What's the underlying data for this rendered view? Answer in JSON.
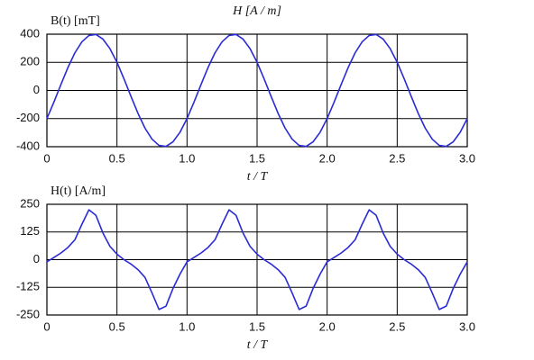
{
  "chart_data": [
    {
      "type": "line",
      "title": "H [A / m]",
      "y_label": "B(t) [mT]",
      "x_label": "t / T",
      "x": [
        0,
        0.05,
        0.1,
        0.15,
        0.2,
        0.25,
        0.3,
        0.35,
        0.4,
        0.45,
        0.5,
        0.55,
        0.6,
        0.65,
        0.7,
        0.75,
        0.8,
        0.85,
        0.9,
        0.95,
        1,
        1.05,
        1.1,
        1.15,
        1.2,
        1.25,
        1.3,
        1.35,
        1.4,
        1.45,
        1.5,
        1.55,
        1.6,
        1.65,
        1.7,
        1.75,
        1.8,
        1.85,
        1.9,
        1.95,
        2,
        2.05,
        2.1,
        2.15,
        2.2,
        2.25,
        2.3,
        2.35,
        2.4,
        2.45,
        2.5,
        2.55,
        2.6,
        2.65,
        2.7,
        2.75,
        2.8,
        2.85,
        2.9,
        2.95,
        3
      ],
      "series": [
        {
          "color": "#2b2bd6",
          "values": [
            -200,
            -83,
            42,
            163,
            268,
            346,
            391,
            398,
            365,
            297,
            200,
            83,
            -42,
            -163,
            -268,
            -346,
            -391,
            -398,
            -365,
            -297,
            -200,
            -83,
            42,
            163,
            268,
            346,
            391,
            398,
            365,
            297,
            200,
            83,
            -42,
            -163,
            -268,
            -346,
            -391,
            -398,
            -365,
            -297,
            -200,
            -83,
            42,
            163,
            268,
            346,
            391,
            398,
            365,
            297,
            200,
            83,
            -42,
            -163,
            -268,
            -346,
            -391,
            -398,
            -365,
            -297,
            -200
          ]
        }
      ],
      "xlim": [
        0,
        3
      ],
      "xticks": [
        0,
        0.5,
        {
          "value": 1,
          "label": "1.0"
        },
        1.5,
        {
          "value": 2,
          "label": "2.0"
        },
        2.5,
        {
          "value": 3,
          "label": "3.0"
        }
      ],
      "ylim": [
        -400,
        400
      ],
      "yticks": [
        -400,
        -200,
        0,
        200,
        400
      ],
      "grid": true
    },
    {
      "type": "line",
      "y_label": "H(t) [A/m]",
      "x_label": "t / T",
      "x": [
        0,
        0.05,
        0.1,
        0.15,
        0.2,
        0.25,
        0.3,
        0.35,
        0.4,
        0.45,
        0.5,
        0.55,
        0.6,
        0.65,
        0.7,
        0.75,
        0.8,
        0.85,
        0.9,
        0.95,
        1,
        1.05,
        1.1,
        1.15,
        1.2,
        1.25,
        1.3,
        1.35,
        1.4,
        1.45,
        1.5,
        1.55,
        1.6,
        1.65,
        1.7,
        1.75,
        1.8,
        1.85,
        1.9,
        1.95,
        2,
        2.05,
        2.1,
        2.15,
        2.2,
        2.25,
        2.3,
        2.35,
        2.4,
        2.45,
        2.5,
        2.55,
        2.6,
        2.65,
        2.7,
        2.75,
        2.8,
        2.85,
        2.9,
        2.95,
        3
      ],
      "series": [
        {
          "color": "#2b2bd6",
          "values": [
            -10,
            10,
            30,
            55,
            90,
            160,
            225,
            200,
            120,
            60,
            25,
            0,
            -20,
            -45,
            -80,
            -150,
            -225,
            -210,
            -130,
            -65,
            -10,
            10,
            30,
            55,
            90,
            160,
            225,
            200,
            120,
            60,
            25,
            0,
            -20,
            -45,
            -80,
            -150,
            -225,
            -210,
            -130,
            -65,
            -10,
            10,
            30,
            55,
            90,
            160,
            225,
            200,
            120,
            60,
            25,
            0,
            -20,
            -45,
            -80,
            -150,
            -225,
            -210,
            -130,
            -65,
            -10
          ]
        }
      ],
      "xlim": [
        0,
        3
      ],
      "xticks": [
        0,
        0.5,
        {
          "value": 1,
          "label": "1.0"
        },
        1.5,
        {
          "value": 2,
          "label": "2.0"
        },
        2.5,
        {
          "value": 3,
          "label": "3.0"
        }
      ],
      "ylim": [
        -250,
        250
      ],
      "yticks": [
        -250,
        -125,
        0,
        125,
        250
      ],
      "grid": true
    }
  ]
}
